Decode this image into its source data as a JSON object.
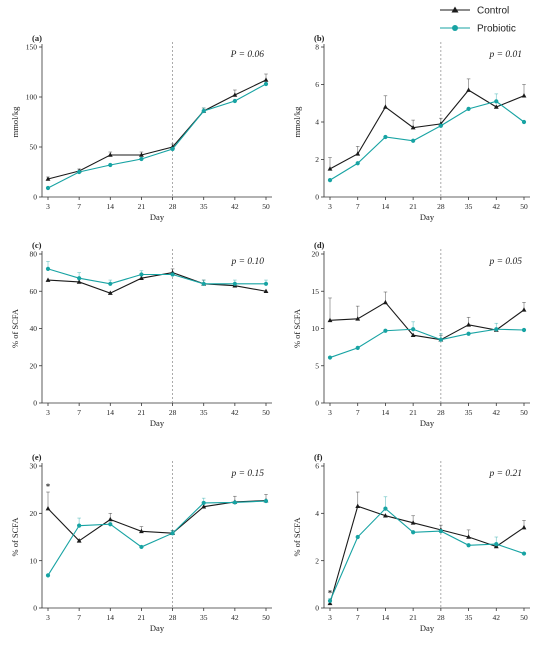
{
  "legend": {
    "entries": [
      {
        "name": "Control",
        "color": "#1a1a1a",
        "marker": "triangle"
      },
      {
        "name": "Probiotic",
        "color": "#17a3a3",
        "marker": "circle"
      }
    ],
    "placement": "top-right"
  },
  "chart_data": [
    {
      "id": "a",
      "type": "line",
      "panel_label": "(a)",
      "pvalue_label": "P = 0.06",
      "xlabel": "Day",
      "ylabel": "mmol/kg",
      "x": [
        3,
        7,
        14,
        21,
        28,
        35,
        42,
        50
      ],
      "ylim": [
        0,
        150
      ],
      "yticks": [
        0,
        50,
        100,
        150
      ],
      "vline_x": 28,
      "series": [
        {
          "name": "Control",
          "color": "#1a1a1a",
          "values": [
            18,
            26,
            42,
            42,
            50,
            86,
            102,
            117
          ],
          "err": [
            2,
            2,
            3,
            3,
            3,
            3,
            5,
            6
          ]
        },
        {
          "name": "Probiotic",
          "color": "#17a3a3",
          "values": [
            9,
            25,
            32,
            38,
            48,
            86,
            96,
            113
          ],
          "err": [
            1,
            2,
            2,
            2,
            5,
            3,
            3,
            4
          ]
        }
      ],
      "annotations": []
    },
    {
      "id": "b",
      "type": "line",
      "panel_label": "(b)",
      "pvalue_label": "p = 0.01",
      "xlabel": "Day",
      "ylabel": "mmol/kg",
      "x": [
        3,
        7,
        14,
        21,
        28,
        35,
        42,
        50
      ],
      "ylim": [
        0,
        8
      ],
      "yticks": [
        0,
        2,
        4,
        6,
        8
      ],
      "vline_x": 28,
      "series": [
        {
          "name": "Control",
          "color": "#1a1a1a",
          "values": [
            1.5,
            2.3,
            4.8,
            3.7,
            3.9,
            5.7,
            4.8,
            5.4
          ],
          "err": [
            0.6,
            0.4,
            0.6,
            0.4,
            0.3,
            0.6,
            0.5,
            0.6
          ]
        },
        {
          "name": "Probiotic",
          "color": "#17a3a3",
          "values": [
            0.9,
            1.8,
            3.2,
            3.0,
            3.8,
            4.7,
            5.1,
            4.0
          ],
          "err": [
            0.3,
            0.3,
            0.3,
            0.3,
            0.3,
            0.4,
            0.4,
            0.4
          ]
        }
      ],
      "annotations": []
    },
    {
      "id": "c",
      "type": "line",
      "panel_label": "(c)",
      "pvalue_label": "p = 0.10",
      "xlabel": "Day",
      "ylabel": "% of SCFA",
      "x": [
        3,
        7,
        14,
        21,
        28,
        35,
        42,
        50
      ],
      "ylim": [
        0,
        80
      ],
      "yticks": [
        0,
        20,
        40,
        60,
        80
      ],
      "vline_x": 28,
      "series": [
        {
          "name": "Control",
          "color": "#1a1a1a",
          "values": [
            66,
            65,
            59,
            67,
            70,
            64,
            63,
            60
          ],
          "err": [
            2,
            2,
            2,
            2,
            2,
            2,
            2,
            2
          ]
        },
        {
          "name": "Probiotic",
          "color": "#17a3a3",
          "values": [
            72,
            67,
            64,
            69,
            69,
            64,
            64,
            64
          ],
          "err": [
            4,
            3,
            2,
            2,
            3,
            2,
            2,
            2
          ]
        }
      ],
      "annotations": []
    },
    {
      "id": "d",
      "type": "line",
      "panel_label": "(d)",
      "pvalue_label": "p = 0.05",
      "xlabel": "Day",
      "ylabel": "% of SCFA",
      "x": [
        3,
        7,
        14,
        21,
        28,
        35,
        42,
        50
      ],
      "ylim": [
        0,
        20
      ],
      "yticks": [
        0,
        5,
        10,
        15,
        20
      ],
      "vline_x": 28,
      "series": [
        {
          "name": "Control",
          "color": "#1a1a1a",
          "values": [
            11.1,
            11.3,
            13.5,
            9.1,
            8.5,
            10.5,
            9.8,
            12.5
          ],
          "err": [
            3.0,
            1.7,
            1.4,
            0.8,
            0.6,
            1.0,
            0.8,
            1.0
          ]
        },
        {
          "name": "Probiotic",
          "color": "#17a3a3",
          "values": [
            6.1,
            7.4,
            9.7,
            9.9,
            8.5,
            9.3,
            9.9,
            9.8
          ],
          "err": [
            1.8,
            1.2,
            1.0,
            1.0,
            0.8,
            0.8,
            0.8,
            0.8
          ]
        }
      ],
      "annotations": []
    },
    {
      "id": "e",
      "type": "line",
      "panel_label": "(e)",
      "pvalue_label": "p = 0.15",
      "xlabel": "Day",
      "ylabel": "% of SCFA",
      "x": [
        3,
        7,
        14,
        21,
        28,
        35,
        42,
        50
      ],
      "ylim": [
        0,
        30
      ],
      "yticks": [
        0,
        10,
        20,
        30
      ],
      "vline_x": 28,
      "series": [
        {
          "name": "Control",
          "color": "#1a1a1a",
          "values": [
            21,
            14.2,
            18.7,
            16.2,
            15.8,
            21.4,
            22.4,
            22.7
          ],
          "err": [
            3.5,
            1.3,
            1.3,
            1.0,
            0.6,
            1.0,
            1.2,
            1.3
          ]
        },
        {
          "name": "Probiotic",
          "color": "#17a3a3",
          "values": [
            6.9,
            17.4,
            17.7,
            12.9,
            15.8,
            22.2,
            22.3,
            22.6
          ],
          "err": [
            0.5,
            1.6,
            1.3,
            1.0,
            0.6,
            1.0,
            1.0,
            1.0
          ]
        }
      ],
      "annotations": [
        {
          "text": "*",
          "x": 3,
          "y": 26
        }
      ]
    },
    {
      "id": "f",
      "type": "line",
      "panel_label": "(f)",
      "pvalue_label": "p = 0.21",
      "xlabel": "Day",
      "ylabel": "% of SCFA",
      "x": [
        3,
        7,
        14,
        21,
        28,
        35,
        42,
        50
      ],
      "ylim": [
        0,
        6
      ],
      "yticks": [
        0,
        2,
        4,
        6
      ],
      "vline_x": 28,
      "series": [
        {
          "name": "Control",
          "color": "#1a1a1a",
          "values": [
            0.2,
            4.3,
            3.9,
            3.6,
            3.3,
            3.0,
            2.6,
            3.4
          ],
          "err": [
            0.1,
            0.6,
            0.5,
            0.3,
            0.2,
            0.3,
            0.3,
            0.3
          ]
        },
        {
          "name": "Probiotic",
          "color": "#17a3a3",
          "values": [
            0.3,
            3.0,
            4.2,
            3.2,
            3.25,
            2.65,
            2.7,
            2.3
          ],
          "err": [
            0.1,
            0.4,
            0.5,
            0.3,
            0.2,
            0.2,
            0.3,
            0.2
          ]
        }
      ],
      "annotations": [
        {
          "text": "*",
          "x": 3,
          "y": 0.7
        }
      ]
    }
  ]
}
